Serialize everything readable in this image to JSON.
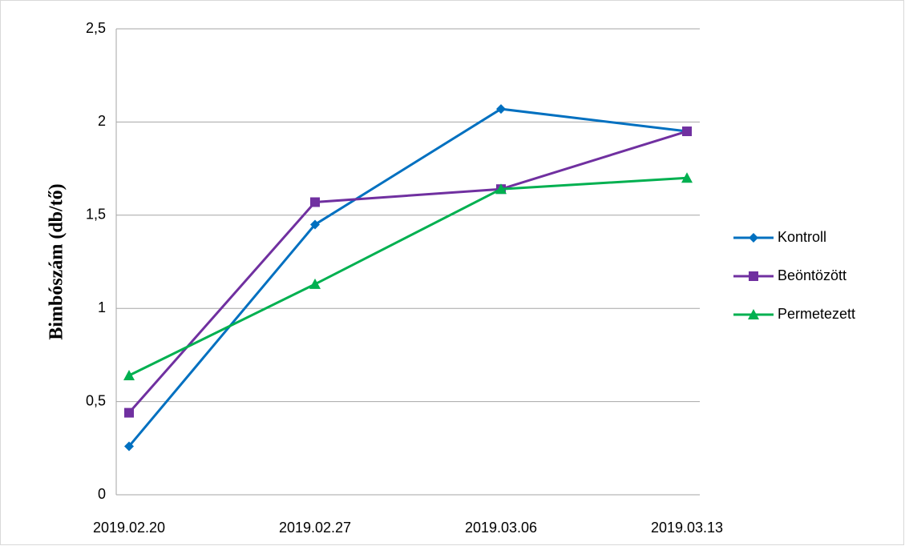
{
  "chart_data": {
    "type": "line",
    "ylabel": "Bimbószám (db/tő)",
    "categories": [
      "2019.02.20",
      "2019.02.27",
      "2019.03.06",
      "2019.03.13"
    ],
    "series": [
      {
        "name": "Kontroll",
        "color": "#0070c0",
        "marker": "diamond",
        "values": [
          0.26,
          1.45,
          2.07,
          1.95
        ]
      },
      {
        "name": "Beöntözött",
        "color": "#7030a0",
        "marker": "square",
        "values": [
          0.44,
          1.57,
          1.64,
          1.95
        ]
      },
      {
        "name": "Permetezett",
        "color": "#00b050",
        "marker": "triangle",
        "values": [
          0.64,
          1.13,
          1.64,
          1.7
        ]
      }
    ],
    "ylim": [
      0,
      2.5
    ],
    "yticks": [
      0,
      {
        "value": 0.5,
        "label": "0,5"
      },
      1,
      {
        "value": 1.5,
        "label": "1,5"
      },
      2,
      {
        "value": 2.5,
        "label": "2,5"
      }
    ],
    "grid": true,
    "legend": "right"
  }
}
